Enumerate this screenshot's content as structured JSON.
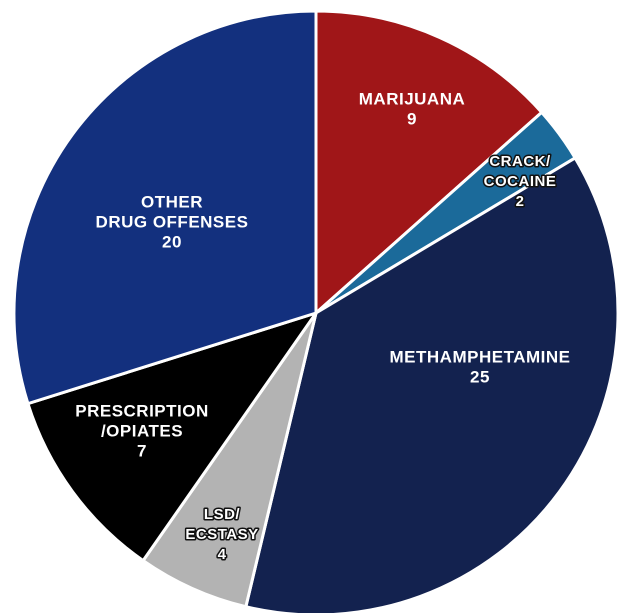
{
  "chart_data": {
    "type": "pie",
    "slices": [
      {
        "label_lines": [
          "MARIJUANA"
        ],
        "value": 9,
        "value_text": "9",
        "color": "#a01618"
      },
      {
        "label_lines": [
          "CRACK/",
          "COCAINE"
        ],
        "value": 2,
        "value_text": "2",
        "color": "#1b6a9a"
      },
      {
        "label_lines": [
          "METHAMPHETAMINE"
        ],
        "value": 25,
        "value_text": "25",
        "color": "#13224f"
      },
      {
        "label_lines": [
          "LSD/",
          "ECSTASY"
        ],
        "value": 4,
        "value_text": "4",
        "color": "#b3b3b3"
      },
      {
        "label_lines": [
          "PRESCRIPTION",
          "/OPIATES"
        ],
        "value": 7,
        "value_text": "7",
        "color": "#000000"
      },
      {
        "label_lines": [
          "OTHER",
          "DRUG OFFENSES"
        ],
        "value": 20,
        "value_text": "20",
        "color": "#13307e"
      }
    ],
    "start_angle": "12 o'clock",
    "direction": "clockwise"
  }
}
